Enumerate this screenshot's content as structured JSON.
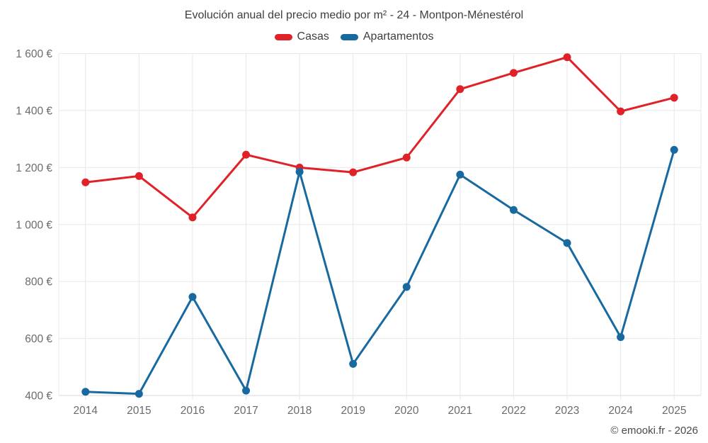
{
  "title": "Evolución anual del precio medio por m² - 24 - Montpon-Ménestérol",
  "legend": {
    "items": [
      {
        "label": "Casas",
        "color": "#e02127"
      },
      {
        "label": "Apartamentos",
        "color": "#1769a0"
      }
    ]
  },
  "footer": {
    "copyright": "© emooki.fr - 2026"
  },
  "colors": {
    "casas": "#e02127",
    "apartamentos": "#1769a0",
    "gridline": "#e8e8e8",
    "axis_line": "#d9d9d9",
    "axis_text": "#6b6b6b",
    "title_text": "#3e3e3e"
  },
  "chart_data": {
    "type": "line",
    "title": "Evolución anual del precio medio por m² - 24 - Montpon-Ménestérol",
    "categories": [
      "2014",
      "2015",
      "2016",
      "2017",
      "2018",
      "2019",
      "2020",
      "2021",
      "2022",
      "2023",
      "2024",
      "2025"
    ],
    "series": [
      {
        "name": "Casas",
        "color": "#e02127",
        "values": [
          1148,
          1170,
          1025,
          1245,
          1200,
          1183,
          1235,
          1475,
          1532,
          1587,
          1397,
          1445
        ]
      },
      {
        "name": "Apartamentos",
        "color": "#1769a0",
        "values": [
          413,
          406,
          746,
          417,
          1185,
          511,
          781,
          1175,
          1051,
          935,
          605,
          1262
        ]
      }
    ],
    "xlabel": "",
    "ylabel": "",
    "ylim": [
      400,
      1600
    ],
    "yticks": [
      400,
      600,
      800,
      1000,
      1200,
      1400,
      1600
    ],
    "ytick_labels": [
      "400 €",
      "600 €",
      "800 €",
      "1 000 €",
      "1 200 €",
      "1 400 €",
      "1 600 €"
    ],
    "grid": true,
    "legend_position": "top",
    "marker": "circle"
  }
}
